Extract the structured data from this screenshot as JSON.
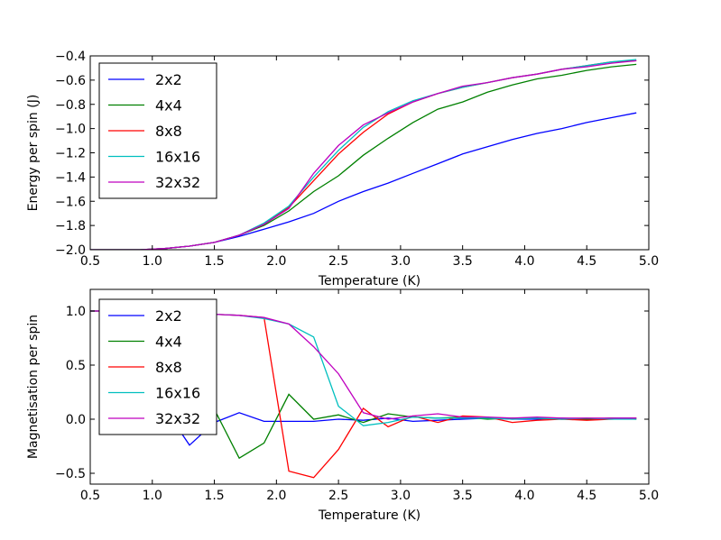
{
  "chart_data": [
    {
      "type": "line",
      "title": "",
      "xlabel": "Temperature (K)",
      "ylabel": "Energy per spin (J)",
      "xlim": [
        0.5,
        5.0
      ],
      "ylim": [
        -2.0,
        -0.4
      ],
      "xticks": [
        "0.5",
        "1.0",
        "1.5",
        "2.0",
        "2.5",
        "3.0",
        "3.5",
        "4.0",
        "4.5",
        "5.0"
      ],
      "yticks": [
        "−2.0",
        "−1.8",
        "−1.6",
        "−1.4",
        "−1.2",
        "−1.0",
        "−0.8",
        "−0.6",
        "−0.4"
      ],
      "grid": false,
      "legend_position": "upper-left",
      "series": [
        {
          "name": "2x2",
          "color": "#0000ff",
          "x": [
            0.5,
            0.7,
            0.9,
            1.1,
            1.3,
            1.5,
            1.7,
            1.9,
            2.1,
            2.3,
            2.5,
            2.7,
            2.9,
            3.1,
            3.3,
            3.5,
            3.7,
            3.9,
            4.1,
            4.3,
            4.5,
            4.7,
            4.9
          ],
          "y": [
            -2.0,
            -2.0,
            -2.0,
            -1.99,
            -1.97,
            -1.94,
            -1.89,
            -1.83,
            -1.77,
            -1.7,
            -1.6,
            -1.52,
            -1.45,
            -1.37,
            -1.29,
            -1.21,
            -1.15,
            -1.09,
            -1.04,
            -1.0,
            -0.95,
            -0.91,
            -0.87
          ]
        },
        {
          "name": "4x4",
          "color": "#008000",
          "x": [
            0.5,
            0.7,
            0.9,
            1.1,
            1.3,
            1.5,
            1.7,
            1.9,
            2.1,
            2.3,
            2.5,
            2.7,
            2.9,
            3.1,
            3.3,
            3.5,
            3.7,
            3.9,
            4.1,
            4.3,
            4.5,
            4.7,
            4.9
          ],
          "y": [
            -2.0,
            -2.0,
            -2.0,
            -1.99,
            -1.97,
            -1.94,
            -1.88,
            -1.8,
            -1.68,
            -1.52,
            -1.39,
            -1.22,
            -1.08,
            -0.95,
            -0.84,
            -0.78,
            -0.7,
            -0.64,
            -0.59,
            -0.56,
            -0.52,
            -0.49,
            -0.47
          ]
        },
        {
          "name": "8x8",
          "color": "#ff0000",
          "x": [
            0.5,
            0.7,
            0.9,
            1.1,
            1.3,
            1.5,
            1.7,
            1.9,
            2.1,
            2.3,
            2.5,
            2.7,
            2.9,
            3.1,
            3.3,
            3.5,
            3.7,
            3.9,
            4.1,
            4.3,
            4.5,
            4.7,
            4.9
          ],
          "y": [
            -2.0,
            -2.0,
            -2.0,
            -1.99,
            -1.97,
            -1.94,
            -1.88,
            -1.79,
            -1.65,
            -1.43,
            -1.21,
            -1.03,
            -0.88,
            -0.78,
            -0.71,
            -0.66,
            -0.62,
            -0.58,
            -0.55,
            -0.51,
            -0.48,
            -0.45,
            -0.44
          ]
        },
        {
          "name": "16x16",
          "color": "#00bfbf",
          "x": [
            0.5,
            0.7,
            0.9,
            1.1,
            1.3,
            1.5,
            1.7,
            1.9,
            2.1,
            2.3,
            2.5,
            2.7,
            2.9,
            3.1,
            3.3,
            3.5,
            3.7,
            3.9,
            4.1,
            4.3,
            4.5,
            4.7,
            4.9
          ],
          "y": [
            -2.0,
            -2.0,
            -2.0,
            -1.99,
            -1.97,
            -1.94,
            -1.88,
            -1.78,
            -1.64,
            -1.4,
            -1.18,
            -0.99,
            -0.86,
            -0.77,
            -0.71,
            -0.66,
            -0.62,
            -0.58,
            -0.55,
            -0.51,
            -0.48,
            -0.45,
            -0.43
          ]
        },
        {
          "name": "32x32",
          "color": "#bf00bf",
          "x": [
            0.5,
            0.7,
            0.9,
            1.1,
            1.3,
            1.5,
            1.7,
            1.9,
            2.1,
            2.3,
            2.5,
            2.7,
            2.9,
            3.1,
            3.3,
            3.5,
            3.7,
            3.9,
            4.1,
            4.3,
            4.5,
            4.7,
            4.9
          ],
          "y": [
            -2.0,
            -2.0,
            -2.0,
            -1.99,
            -1.97,
            -1.94,
            -1.88,
            -1.79,
            -1.66,
            -1.37,
            -1.14,
            -0.97,
            -0.87,
            -0.78,
            -0.71,
            -0.65,
            -0.62,
            -0.58,
            -0.55,
            -0.51,
            -0.49,
            -0.46,
            -0.44
          ]
        }
      ]
    },
    {
      "type": "line",
      "title": "",
      "xlabel": "Temperature (K)",
      "ylabel": "Magnetisation per spin",
      "xlim": [
        0.5,
        5.0
      ],
      "ylim": [
        -0.6,
        1.2
      ],
      "xticks": [
        "0.5",
        "1.0",
        "1.5",
        "2.0",
        "2.5",
        "3.0",
        "3.5",
        "4.0",
        "4.5",
        "5.0"
      ],
      "yticks": [
        "−0.5",
        "0.0",
        "0.5",
        "1.0"
      ],
      "grid": false,
      "legend_position": "upper-left",
      "series": [
        {
          "name": "2x2",
          "color": "#0000ff",
          "x": [
            0.5,
            0.7,
            0.9,
            1.1,
            1.3,
            1.5,
            1.7,
            1.9,
            2.1,
            2.3,
            2.5,
            2.7,
            2.9,
            3.1,
            3.3,
            3.5,
            3.7,
            3.9,
            4.1,
            4.3,
            4.5,
            4.7,
            4.9
          ],
          "y": [
            1.0,
            1.0,
            0.99,
            0.1,
            -0.24,
            -0.03,
            0.06,
            -0.02,
            -0.02,
            -0.02,
            0.0,
            -0.01,
            0.01,
            -0.02,
            -0.01,
            0.0,
            0.01,
            0.0,
            0.0,
            0.01,
            0.0,
            0.01,
            0.01
          ]
        },
        {
          "name": "4x4",
          "color": "#008000",
          "x": [
            0.5,
            0.7,
            0.9,
            1.1,
            1.3,
            1.5,
            1.7,
            1.9,
            2.1,
            2.3,
            2.5,
            2.7,
            2.9,
            3.1,
            3.3,
            3.5,
            3.7,
            3.9,
            4.1,
            4.3,
            4.5,
            4.7,
            4.9
          ],
          "y": [
            1.0,
            1.0,
            0.99,
            0.98,
            0.97,
            0.09,
            -0.36,
            -0.22,
            0.23,
            0.0,
            0.04,
            -0.03,
            0.05,
            0.02,
            0.01,
            0.02,
            0.0,
            0.01,
            0.01,
            0.0,
            0.0,
            0.01,
            0.0
          ]
        },
        {
          "name": "8x8",
          "color": "#ff0000",
          "x": [
            0.5,
            0.7,
            0.9,
            1.1,
            1.3,
            1.5,
            1.7,
            1.9,
            2.1,
            2.3,
            2.5,
            2.7,
            2.9,
            3.1,
            3.3,
            3.5,
            3.7,
            3.9,
            4.1,
            4.3,
            4.5,
            4.7,
            4.9
          ],
          "y": [
            1.0,
            1.0,
            0.99,
            0.99,
            0.98,
            0.97,
            0.96,
            0.94,
            -0.48,
            -0.54,
            -0.28,
            0.1,
            -0.07,
            0.03,
            -0.03,
            0.03,
            0.02,
            -0.03,
            -0.01,
            0.0,
            -0.01,
            0.0,
            0.01
          ]
        },
        {
          "name": "16x16",
          "color": "#00bfbf",
          "x": [
            0.5,
            0.7,
            0.9,
            1.1,
            1.3,
            1.5,
            1.7,
            1.9,
            2.1,
            2.3,
            2.5,
            2.7,
            2.9,
            3.1,
            3.3,
            3.5,
            3.7,
            3.9,
            4.1,
            4.3,
            4.5,
            4.7,
            4.9
          ],
          "y": [
            1.0,
            1.0,
            0.99,
            0.99,
            0.98,
            0.97,
            0.96,
            0.93,
            0.88,
            0.76,
            0.12,
            -0.06,
            -0.03,
            0.02,
            0.01,
            0.01,
            0.01,
            0.0,
            0.01,
            0.0,
            0.01,
            0.0,
            0.0
          ]
        },
        {
          "name": "32x32",
          "color": "#bf00bf",
          "x": [
            0.5,
            0.7,
            0.9,
            1.1,
            1.3,
            1.5,
            1.7,
            1.9,
            2.1,
            2.3,
            2.5,
            2.7,
            2.9,
            3.1,
            3.3,
            3.5,
            3.7,
            3.9,
            4.1,
            4.3,
            4.5,
            4.7,
            4.9
          ],
          "y": [
            1.0,
            1.0,
            0.99,
            0.99,
            0.98,
            0.97,
            0.96,
            0.94,
            0.88,
            0.67,
            0.42,
            0.06,
            0.0,
            0.03,
            0.05,
            0.02,
            0.02,
            0.01,
            0.02,
            0.01,
            0.01,
            0.01,
            0.01
          ]
        }
      ]
    }
  ]
}
